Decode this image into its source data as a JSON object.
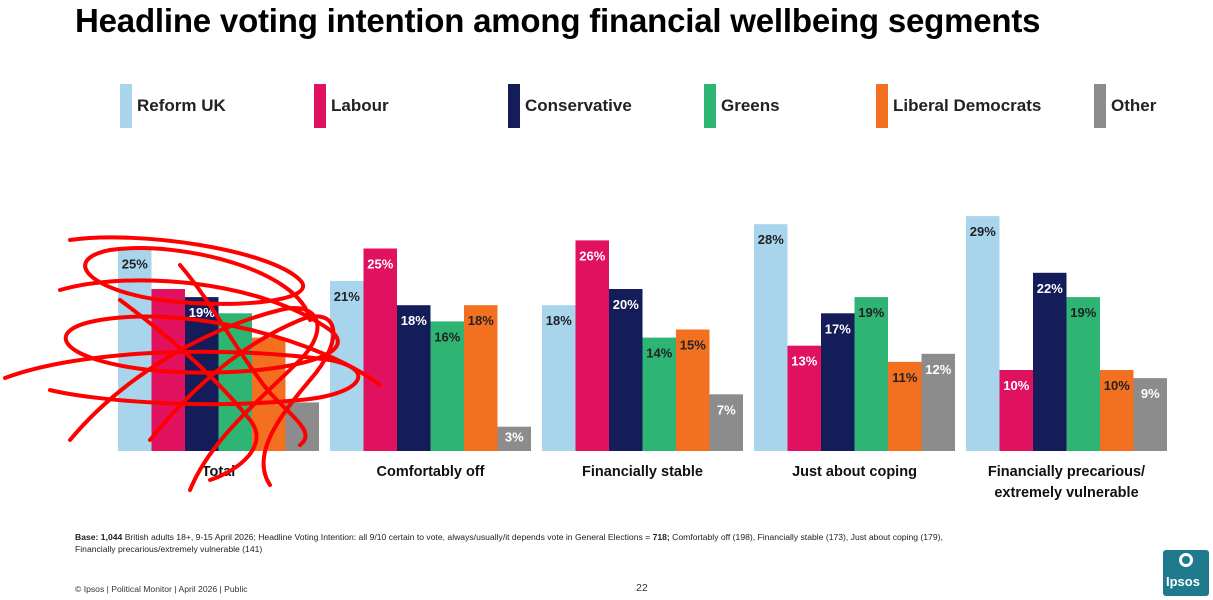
{
  "title": "Headline voting intention among financial wellbeing segments",
  "chart_data": {
    "type": "bar",
    "categories": [
      "Total",
      "Comfortably off",
      "Financially stable",
      "Just about coping",
      "Financially precarious/ extremely vulnerable"
    ],
    "series": [
      {
        "name": "Reform UK",
        "color": "#a8d5ec",
        "label_color": "#222222",
        "values": [
          25,
          21,
          18,
          28,
          29
        ]
      },
      {
        "name": "Labour",
        "color": "#e0115f",
        "label_color": "#ffffff",
        "values": [
          20,
          25,
          26,
          13,
          10
        ]
      },
      {
        "name": "Conservative",
        "color": "#141c5a",
        "label_color": "#ffffff",
        "values": [
          19,
          18,
          20,
          17,
          22
        ]
      },
      {
        "name": "Greens",
        "color": "#2eb473",
        "label_color": "#222222",
        "values": [
          17,
          16,
          14,
          19,
          19
        ]
      },
      {
        "name": "Liberal Democrats",
        "color": "#f37021",
        "label_color": "#222222",
        "values": [
          14,
          18,
          15,
          11,
          10
        ]
      },
      {
        "name": "Other",
        "color": "#8c8c8c",
        "label_color": "#ffffff",
        "values": [
          6,
          3,
          7,
          12,
          9
        ]
      }
    ],
    "value_labels": [
      [
        "25%",
        "21%",
        "18%",
        "28%",
        "29%"
      ],
      [
        "",
        "25%",
        "26%",
        "13%",
        "10%"
      ],
      [
        "19%",
        "18%",
        "20%",
        "17%",
        "22%"
      ],
      [
        "",
        "16%",
        "14%",
        "19%",
        "19%"
      ],
      [
        "",
        "18%",
        "15%",
        "11%",
        "10%"
      ],
      [
        "",
        "3%",
        "7%",
        "12%",
        "9%"
      ]
    ],
    "ylim": [
      0,
      30
    ],
    "grid": false,
    "legend_position": "top",
    "value_suffix": "%"
  },
  "base_note": {
    "bold_prefix": "Base: 1,044",
    "text_1": " British adults 18+, 9-15 April 2026; Headline Voting Intention:  all  9/10 certain to vote, always/usually/it depends vote in General Elections = ",
    "bold_mid": "718;",
    "text_2": " Comfortably off (198), Financially stable (173), Just about coping (179), Financially precarious/extremely vulnerable (141)"
  },
  "footer": {
    "left": "© Ipsos | Political Monitor | April 2026 | Public",
    "page_number": "22"
  },
  "logo": {
    "text": "Ipsos",
    "color": "#1e7a8c"
  },
  "scribble": {
    "color": "#ff0000"
  }
}
